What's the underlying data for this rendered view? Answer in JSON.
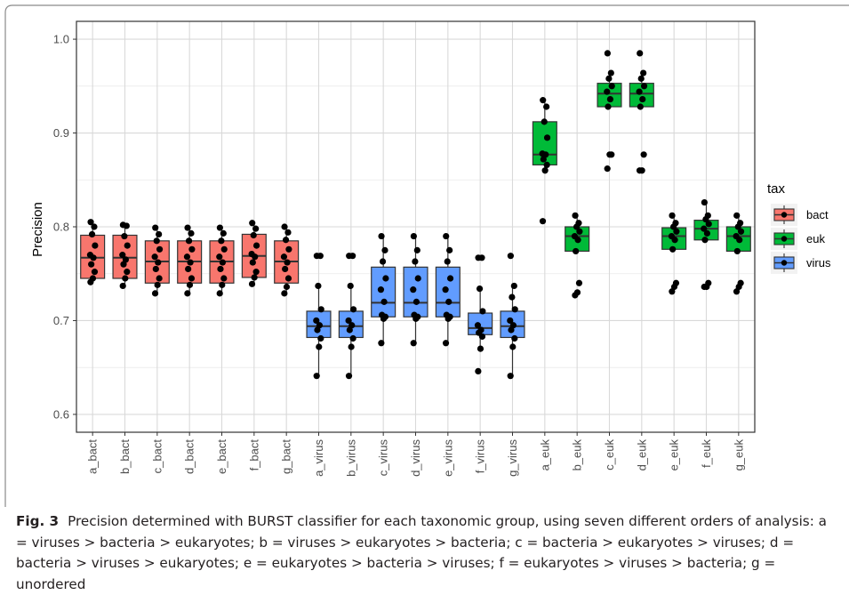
{
  "chart_data": {
    "type": "box",
    "ylabel": "Precision",
    "ylim": [
      0.6,
      1.0
    ],
    "y_ticks": [
      0.6,
      0.7,
      0.8,
      0.9,
      1.0
    ],
    "y_tick_labels": [
      "0.6",
      "0.7",
      "0.8",
      "0.9",
      "1.0"
    ],
    "grid": true,
    "legend": {
      "title": "tax",
      "position": "right",
      "entries": [
        {
          "label": "bact",
          "color": "#F8766D"
        },
        {
          "label": "euk",
          "color": "#00BA38"
        },
        {
          "label": "virus",
          "color": "#619CFF"
        }
      ]
    },
    "categories": [
      "a_bact",
      "b_bact",
      "c_bact",
      "d_bact",
      "e_bact",
      "f_bact",
      "g_bact",
      "a_virus",
      "b_virus",
      "c_virus",
      "d_virus",
      "e_virus",
      "f_virus",
      "g_virus",
      "a_euk",
      "b_euk",
      "c_euk",
      "d_euk",
      "e_euk",
      "f_euk",
      "g_euk"
    ],
    "groups": [
      "bact",
      "bact",
      "bact",
      "bact",
      "bact",
      "bact",
      "bact",
      "virus",
      "virus",
      "virus",
      "virus",
      "virus",
      "virus",
      "virus",
      "euk",
      "euk",
      "euk",
      "euk",
      "euk",
      "euk",
      "euk"
    ],
    "boxes": [
      {
        "whisker_low": 0.741,
        "q1": 0.745,
        "median": 0.767,
        "q3": 0.791,
        "whisker_high": 0.805,
        "points": [
          0.805,
          0.8,
          0.792,
          0.78,
          0.77,
          0.767,
          0.76,
          0.752,
          0.745,
          0.741
        ]
      },
      {
        "whisker_low": 0.737,
        "q1": 0.745,
        "median": 0.767,
        "q3": 0.791,
        "whisker_high": 0.802,
        "points": [
          0.802,
          0.801,
          0.79,
          0.78,
          0.77,
          0.765,
          0.76,
          0.752,
          0.745,
          0.737
        ]
      },
      {
        "whisker_low": 0.729,
        "q1": 0.74,
        "median": 0.763,
        "q3": 0.785,
        "whisker_high": 0.799,
        "points": [
          0.799,
          0.792,
          0.785,
          0.776,
          0.768,
          0.762,
          0.755,
          0.745,
          0.738,
          0.729
        ]
      },
      {
        "whisker_low": 0.729,
        "q1": 0.74,
        "median": 0.763,
        "q3": 0.785,
        "whisker_high": 0.799,
        "points": [
          0.799,
          0.793,
          0.785,
          0.776,
          0.768,
          0.762,
          0.755,
          0.745,
          0.738,
          0.729
        ]
      },
      {
        "whisker_low": 0.729,
        "q1": 0.74,
        "median": 0.763,
        "q3": 0.785,
        "whisker_high": 0.799,
        "points": [
          0.799,
          0.793,
          0.785,
          0.776,
          0.768,
          0.762,
          0.755,
          0.745,
          0.738,
          0.729
        ]
      },
      {
        "whisker_low": 0.739,
        "q1": 0.746,
        "median": 0.769,
        "q3": 0.792,
        "whisker_high": 0.804,
        "points": [
          0.804,
          0.798,
          0.791,
          0.78,
          0.771,
          0.768,
          0.762,
          0.752,
          0.746,
          0.739
        ]
      },
      {
        "whisker_low": 0.729,
        "q1": 0.74,
        "median": 0.763,
        "q3": 0.785,
        "whisker_high": 0.8,
        "points": [
          0.8,
          0.794,
          0.786,
          0.776,
          0.768,
          0.762,
          0.755,
          0.745,
          0.736,
          0.729
        ]
      },
      {
        "whisker_low": 0.641,
        "q1": 0.682,
        "median": 0.694,
        "q3": 0.71,
        "whisker_high": 0.737,
        "points": [
          0.769,
          0.769,
          0.737,
          0.712,
          0.7,
          0.695,
          0.69,
          0.681,
          0.672,
          0.641
        ]
      },
      {
        "whisker_low": 0.641,
        "q1": 0.682,
        "median": 0.694,
        "q3": 0.71,
        "whisker_high": 0.737,
        "points": [
          0.769,
          0.769,
          0.737,
          0.712,
          0.7,
          0.695,
          0.69,
          0.681,
          0.672,
          0.641
        ]
      },
      {
        "whisker_low": 0.676,
        "q1": 0.704,
        "median": 0.719,
        "q3": 0.757,
        "whisker_high": 0.79,
        "points": [
          0.79,
          0.775,
          0.763,
          0.745,
          0.733,
          0.72,
          0.706,
          0.704,
          0.702,
          0.676
        ]
      },
      {
        "whisker_low": 0.676,
        "q1": 0.704,
        "median": 0.719,
        "q3": 0.757,
        "whisker_high": 0.79,
        "points": [
          0.79,
          0.775,
          0.763,
          0.745,
          0.733,
          0.72,
          0.706,
          0.704,
          0.702,
          0.676
        ]
      },
      {
        "whisker_low": 0.676,
        "q1": 0.704,
        "median": 0.719,
        "q3": 0.757,
        "whisker_high": 0.79,
        "points": [
          0.79,
          0.775,
          0.763,
          0.745,
          0.733,
          0.72,
          0.706,
          0.704,
          0.702,
          0.676
        ]
      },
      {
        "whisker_low": 0.67,
        "q1": 0.685,
        "median": 0.692,
        "q3": 0.708,
        "whisker_high": 0.734,
        "points": [
          0.767,
          0.767,
          0.734,
          0.71,
          0.695,
          0.69,
          0.687,
          0.683,
          0.67,
          0.646
        ]
      },
      {
        "whisker_low": 0.641,
        "q1": 0.682,
        "median": 0.694,
        "q3": 0.71,
        "whisker_high": 0.737,
        "points": [
          0.769,
          0.737,
          0.725,
          0.712,
          0.7,
          0.695,
          0.69,
          0.681,
          0.672,
          0.641
        ]
      },
      {
        "whisker_low": 0.86,
        "q1": 0.866,
        "median": 0.877,
        "q3": 0.912,
        "whisker_high": 0.935,
        "points": [
          0.935,
          0.928,
          0.912,
          0.895,
          0.878,
          0.877,
          0.872,
          0.866,
          0.86,
          0.806
        ]
      },
      {
        "whisker_low": 0.774,
        "q1": 0.774,
        "median": 0.79,
        "q3": 0.8,
        "whisker_high": 0.812,
        "points": [
          0.812,
          0.804,
          0.8,
          0.795,
          0.79,
          0.786,
          0.774,
          0.74,
          0.73,
          0.727
        ]
      },
      {
        "whisker_low": 0.928,
        "q1": 0.928,
        "median": 0.942,
        "q3": 0.953,
        "whisker_high": 0.964,
        "points": [
          0.985,
          0.964,
          0.958,
          0.95,
          0.944,
          0.936,
          0.928,
          0.877,
          0.877,
          0.862
        ]
      },
      {
        "whisker_low": 0.928,
        "q1": 0.928,
        "median": 0.942,
        "q3": 0.953,
        "whisker_high": 0.964,
        "points": [
          0.985,
          0.964,
          0.958,
          0.95,
          0.944,
          0.936,
          0.928,
          0.877,
          0.86,
          0.86
        ]
      },
      {
        "whisker_low": 0.774,
        "q1": 0.776,
        "median": 0.79,
        "q3": 0.799,
        "whisker_high": 0.812,
        "points": [
          0.812,
          0.804,
          0.8,
          0.795,
          0.79,
          0.786,
          0.776,
          0.74,
          0.736,
          0.731
        ]
      },
      {
        "whisker_low": 0.785,
        "q1": 0.786,
        "median": 0.798,
        "q3": 0.807,
        "whisker_high": 0.826,
        "points": [
          0.826,
          0.812,
          0.808,
          0.803,
          0.798,
          0.793,
          0.786,
          0.74,
          0.736,
          0.736
        ]
      },
      {
        "whisker_low": 0.774,
        "q1": 0.774,
        "median": 0.79,
        "q3": 0.8,
        "whisker_high": 0.812,
        "points": [
          0.812,
          0.804,
          0.8,
          0.795,
          0.79,
          0.786,
          0.774,
          0.74,
          0.736,
          0.731
        ]
      }
    ]
  },
  "caption": {
    "label": "Fig. 3",
    "text": "Precision determined with BURST classifier for each taxonomic group, using seven different orders of analysis: a = viruses > bacteria > eukaryotes; b = viruses > eukaryotes > bacteria; c = bacteria > eukaryotes > viruses; d = bacteria > viruses > eukaryotes; e = eukaryotes > bacteria > viruses; f = eukaryotes > viruses > bacteria; g = unordered"
  }
}
